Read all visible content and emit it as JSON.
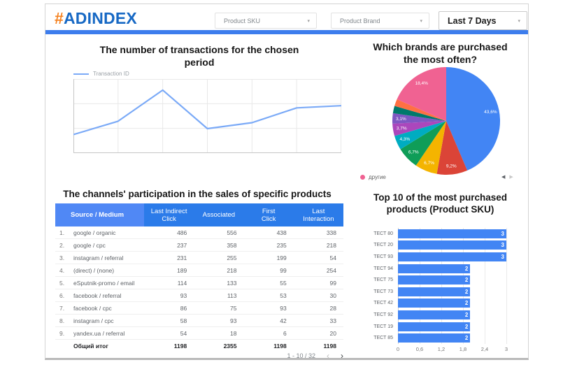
{
  "header": {
    "logo_hash": "#",
    "logo_text": "ADINDEX",
    "filters": [
      {
        "id": "product-sku",
        "label": "Product SKU"
      },
      {
        "id": "product-brand",
        "label": "Product Brand"
      },
      {
        "id": "date-range",
        "label": "Last 7 Days"
      }
    ]
  },
  "line_chart": {
    "title_line1": "The number of transactions for the chosen",
    "title_line2": "period",
    "legend": "Transaction ID",
    "chart": {
      "type": "line",
      "series_name": "Transaction ID",
      "values": [
        25,
        43,
        85,
        33,
        41,
        61,
        64
      ],
      "ylim": [
        0,
        100
      ],
      "grid": true,
      "axis_labels_visible": false
    }
  },
  "pie_chart": {
    "title_line1": "Which brands are purchased",
    "title_line2": "the most often?",
    "legend_item": "другие",
    "legend_color": "#F06292",
    "chart": {
      "type": "pie",
      "slices": [
        {
          "label": "43,6%",
          "value": 43.6,
          "color": "#4285F4"
        },
        {
          "label": "9,2%",
          "value": 9.2,
          "color": "#DB4437"
        },
        {
          "label": "6,7%",
          "value": 6.7,
          "color": "#F4B400"
        },
        {
          "label": "6,7%",
          "value": 6.7,
          "color": "#0F9D58"
        },
        {
          "label": "4,3%",
          "value": 4.3,
          "color": "#00ACC1"
        },
        {
          "label": "3,7%",
          "value": 3.7,
          "color": "#AB47BC"
        },
        {
          "label": "3,1%",
          "value": 3.1,
          "color": "#7E57C2"
        },
        {
          "label": "",
          "value": 2.2,
          "color": "#00796B"
        },
        {
          "label": "",
          "value": 2.1,
          "color": "#FF7043"
        },
        {
          "label": "18,4%",
          "value": 18.4,
          "color": "#F06292"
        }
      ]
    }
  },
  "table": {
    "title": "The channels' participation in the sales of specific products",
    "columns": [
      "Source / Medium",
      "Last Indirect Click",
      "Associated",
      "First Click",
      "Last Interaction"
    ],
    "rows": [
      {
        "n": "1.",
        "source": "google / organic",
        "values": [
          "486",
          "556",
          "438",
          "338"
        ]
      },
      {
        "n": "2.",
        "source": "google / cpc",
        "values": [
          "237",
          "358",
          "235",
          "218"
        ]
      },
      {
        "n": "3.",
        "source": "instagram / referral",
        "values": [
          "231",
          "255",
          "199",
          "54"
        ]
      },
      {
        "n": "4.",
        "source": "(direct) / (none)",
        "values": [
          "189",
          "218",
          "99",
          "254"
        ]
      },
      {
        "n": "5.",
        "source": "eSputnik-promo / email",
        "values": [
          "114",
          "133",
          "55",
          "99"
        ]
      },
      {
        "n": "6.",
        "source": "facebook / referral",
        "values": [
          "93",
          "113",
          "53",
          "30"
        ]
      },
      {
        "n": "7.",
        "source": "facebook / cpc",
        "values": [
          "86",
          "75",
          "93",
          "28"
        ]
      },
      {
        "n": "8.",
        "source": "instagram / cpc",
        "values": [
          "58",
          "93",
          "42",
          "33"
        ]
      },
      {
        "n": "9.",
        "source": "yandex.ua / referral",
        "values": [
          "54",
          "18",
          "6",
          "20"
        ]
      }
    ],
    "total": {
      "label": "Общий итог",
      "values": [
        "1198",
        "2355",
        "1198",
        "1198"
      ]
    },
    "pagination": {
      "range": "1 - 10 / 32",
      "prev": "‹",
      "next": "›"
    }
  },
  "bar_chart": {
    "title_line1": "Top 10 of the most purchased",
    "title_line2": "products (Product SKU)",
    "chart": {
      "type": "bar",
      "orientation": "horizontal",
      "categories": [
        "ТЕСТ 80",
        "ТЕСТ 20",
        "ТЕСТ 93",
        "ТЕСТ 94",
        "ТЕСТ 75",
        "ТЕСТ 73",
        "ТЕСТ 42",
        "ТЕСТ 92",
        "ТЕСТ 19",
        "ТЕСТ 85"
      ],
      "values": [
        3,
        3,
        3,
        2,
        2,
        2,
        2,
        2,
        2,
        2
      ],
      "xticks": [
        "0",
        "0,6",
        "1,2",
        "1,8",
        "2,4",
        "3"
      ],
      "xtick_values": [
        0,
        0.6,
        1.2,
        1.8,
        2.4,
        3
      ],
      "xlim": [
        0,
        3
      ],
      "bar_color": "#4285F4",
      "grid": true
    }
  },
  "colors": {
    "accent_blue": "#3D7DED",
    "logo_orange": "#F58220",
    "logo_blue": "#1668C4",
    "line_series": "#7BAAF7",
    "table_header_dimension_bg": "#5088F5",
    "table_header_metric_bg": "#2B7BE9",
    "bar_color": "#4285F4",
    "pie_legend_dot": "#F06292"
  }
}
